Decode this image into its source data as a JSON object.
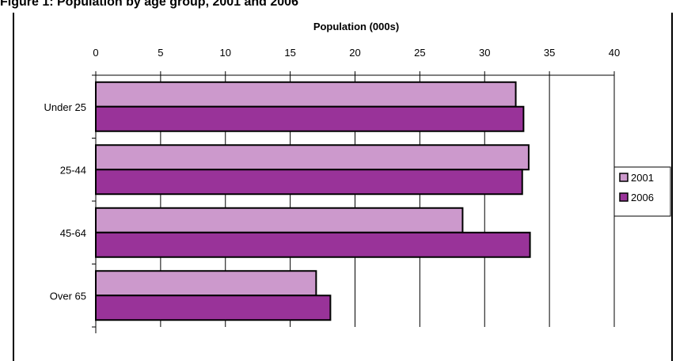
{
  "page_title": "Figure 1: Population by age group, 2001 and 2006",
  "chart_data": {
    "type": "bar",
    "orientation": "horizontal",
    "title": "",
    "xlabel": "Population (000s)",
    "ylabel": "",
    "xlim": [
      0,
      40
    ],
    "x_ticks": [
      0,
      5,
      10,
      15,
      20,
      25,
      30,
      35,
      40
    ],
    "categories": [
      "Under 25",
      "25-44",
      "45-64",
      "Over 65"
    ],
    "series": [
      {
        "name": "2001",
        "values": [
          32.4,
          33.4,
          28.3,
          17.0
        ],
        "color": "#cc99cc"
      },
      {
        "name": "2006",
        "values": [
          33.0,
          32.9,
          33.5,
          18.1
        ],
        "color": "#993399"
      }
    ],
    "grid": "vertical major",
    "legend": "right",
    "axis_position": "top"
  }
}
